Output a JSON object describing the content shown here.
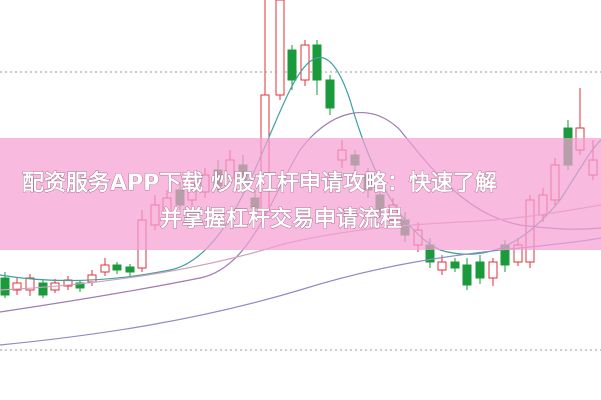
{
  "banner": {
    "lines": [
      "配资服务APP下载 炒股杠杆申请攻略：快速了解",
      "并掌握杠杆交易申请流程"
    ]
  }
}
